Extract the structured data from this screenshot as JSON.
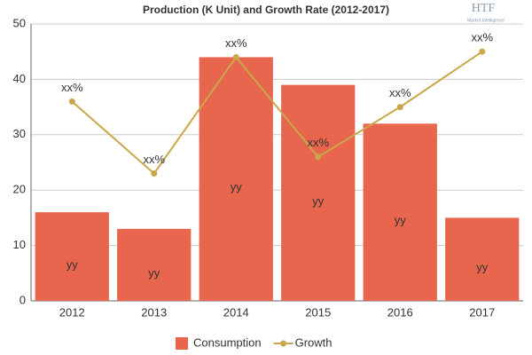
{
  "chart_data": {
    "type": "bar-line",
    "title": "Production (K Unit) and Growth Rate (2012-2017)",
    "logo": {
      "name": "HTF",
      "tagline": "Market Intelligence"
    },
    "categories": [
      "2012",
      "2013",
      "2014",
      "2015",
      "2016",
      "2017"
    ],
    "series": [
      {
        "name": "Consumption",
        "type": "bar",
        "color": "#e8664d",
        "values": [
          16,
          13,
          44,
          39,
          32,
          15
        ],
        "value_labels": [
          "yy",
          "yy",
          "yy",
          "yy",
          "yy",
          "yy"
        ]
      },
      {
        "name": "Growth",
        "type": "line",
        "color": "#c9a74a",
        "values": [
          36,
          23,
          44,
          26,
          35,
          45
        ],
        "value_labels": [
          "xx%",
          "xx%",
          "xx%",
          "xx%",
          "xx%",
          "xx%"
        ]
      }
    ],
    "ylim": [
      0,
      50
    ],
    "yticks": [
      0,
      10,
      20,
      30,
      40,
      50
    ],
    "grid": true,
    "legend": "bottom"
  }
}
